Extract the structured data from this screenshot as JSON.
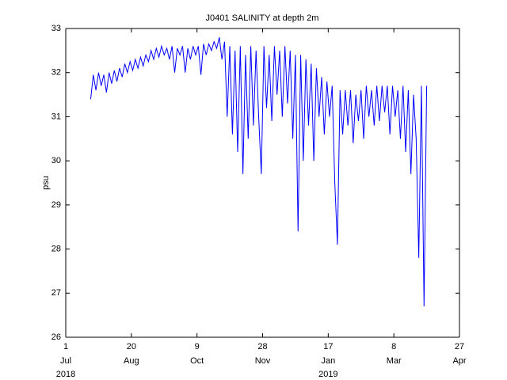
{
  "chart_data": {
    "type": "line",
    "title": "J0401 SALINITY at depth 2m",
    "ylabel": "psu",
    "x": [
      "2018-07-20",
      "2018-07-22",
      "2018-07-24",
      "2018-07-26",
      "2018-07-28",
      "2018-07-30",
      "2018-08-01",
      "2018-08-03",
      "2018-08-05",
      "2018-08-07",
      "2018-08-09",
      "2018-08-11",
      "2018-08-13",
      "2018-08-15",
      "2018-08-17",
      "2018-08-19",
      "2018-08-21",
      "2018-08-23",
      "2018-08-25",
      "2018-08-27",
      "2018-08-29",
      "2018-08-31",
      "2018-09-02",
      "2018-09-04",
      "2018-09-06",
      "2018-09-08",
      "2018-09-10",
      "2018-09-12",
      "2018-09-14",
      "2018-09-16",
      "2018-09-18",
      "2018-09-20",
      "2018-09-22",
      "2018-09-24",
      "2018-09-26",
      "2018-09-28",
      "2018-09-30",
      "2018-10-02",
      "2018-10-04",
      "2018-10-06",
      "2018-10-08",
      "2018-10-10",
      "2018-10-12",
      "2018-10-14",
      "2018-10-16",
      "2018-10-18",
      "2018-10-20",
      "2018-10-22",
      "2018-10-24",
      "2018-10-26",
      "2018-10-28",
      "2018-10-30",
      "2018-11-01",
      "2018-11-03",
      "2018-11-05",
      "2018-11-07",
      "2018-11-09",
      "2018-11-11",
      "2018-11-13",
      "2018-11-15",
      "2018-11-17",
      "2018-11-19",
      "2018-11-21",
      "2018-11-23",
      "2018-11-25",
      "2018-11-27",
      "2018-11-29",
      "2018-12-01",
      "2018-12-03",
      "2018-12-05",
      "2018-12-07",
      "2018-12-09",
      "2018-12-11",
      "2018-12-13",
      "2018-12-15",
      "2018-12-17",
      "2018-12-19",
      "2018-12-21",
      "2018-12-23",
      "2018-12-25",
      "2018-12-27",
      "2018-12-29",
      "2018-12-31",
      "2019-01-02",
      "2019-01-04",
      "2019-01-06",
      "2019-01-08",
      "2019-01-10",
      "2019-01-12",
      "2019-01-14",
      "2019-01-16",
      "2019-01-18",
      "2019-01-20",
      "2019-01-22",
      "2019-01-24",
      "2019-01-26",
      "2019-01-28",
      "2019-01-30",
      "2019-02-01",
      "2019-02-03",
      "2019-02-05",
      "2019-02-07",
      "2019-02-09",
      "2019-02-11",
      "2019-02-13",
      "2019-02-15",
      "2019-02-17",
      "2019-02-19",
      "2019-02-21",
      "2019-02-23",
      "2019-02-25",
      "2019-02-27",
      "2019-03-01",
      "2019-03-03",
      "2019-03-05",
      "2019-03-07",
      "2019-03-09",
      "2019-03-11",
      "2019-03-13",
      "2019-03-15",
      "2019-03-17",
      "2019-03-19",
      "2019-03-21",
      "2019-03-23",
      "2019-03-25",
      "2019-03-27",
      "2019-03-29",
      "2019-03-31",
      "2019-04-02"
    ],
    "series": [
      {
        "color": "#0000ff",
        "values": [
          31.4,
          31.95,
          31.6,
          32.0,
          31.7,
          31.95,
          31.55,
          32.0,
          31.75,
          32.05,
          31.8,
          32.1,
          31.9,
          32.2,
          32.0,
          32.25,
          32.05,
          32.3,
          32.1,
          32.35,
          32.15,
          32.4,
          32.25,
          32.5,
          32.3,
          32.55,
          32.35,
          32.6,
          32.4,
          32.55,
          32.3,
          32.6,
          32.0,
          32.55,
          32.4,
          32.6,
          32.0,
          32.55,
          32.3,
          32.6,
          32.4,
          32.6,
          31.95,
          32.65,
          32.4,
          32.65,
          32.5,
          32.7,
          32.55,
          32.8,
          32.3,
          32.7,
          31.0,
          32.6,
          30.6,
          32.5,
          30.2,
          32.6,
          29.7,
          32.4,
          30.5,
          32.6,
          30.8,
          32.5,
          31.0,
          29.7,
          32.6,
          31.2,
          32.4,
          30.9,
          32.6,
          31.5,
          32.5,
          31.0,
          32.6,
          31.3,
          32.5,
          30.5,
          32.4,
          28.4,
          32.4,
          30.0,
          32.3,
          30.8,
          32.2,
          30.0,
          32.1,
          31.0,
          31.9,
          30.6,
          31.8,
          31.0,
          31.7,
          29.5,
          28.1,
          31.6,
          30.6,
          31.6,
          30.8,
          31.6,
          30.4,
          31.5,
          30.9,
          31.6,
          30.5,
          31.7,
          31.0,
          31.6,
          30.8,
          31.7,
          30.9,
          31.7,
          31.1,
          31.7,
          30.6,
          31.7,
          31.0,
          31.6,
          30.5,
          31.7,
          30.2,
          31.6,
          29.7,
          31.5,
          30.5,
          27.8,
          31.7,
          26.7,
          31.7
        ]
      }
    ],
    "xlim": [
      "2018-07-01",
      "2019-04-27"
    ],
    "xticks": [
      {
        "value": "2018-07-01",
        "label": "1",
        "month": "Jul",
        "year": "2018"
      },
      {
        "value": "2018-08-20",
        "label": "20",
        "month": "Aug"
      },
      {
        "value": "2018-10-09",
        "label": "9",
        "month": "Oct"
      },
      {
        "value": "2018-11-28",
        "label": "28",
        "month": "Nov"
      },
      {
        "value": "2019-01-17",
        "label": "17",
        "month": "Jan",
        "year": "2019"
      },
      {
        "value": "2019-03-08",
        "label": "8",
        "month": "Mar"
      },
      {
        "value": "2019-04-27",
        "label": "27",
        "month": "Apr"
      }
    ],
    "ylim": [
      26,
      33
    ],
    "yticks": [
      26,
      27,
      28,
      29,
      30,
      31,
      32,
      33
    ],
    "grid": false
  }
}
